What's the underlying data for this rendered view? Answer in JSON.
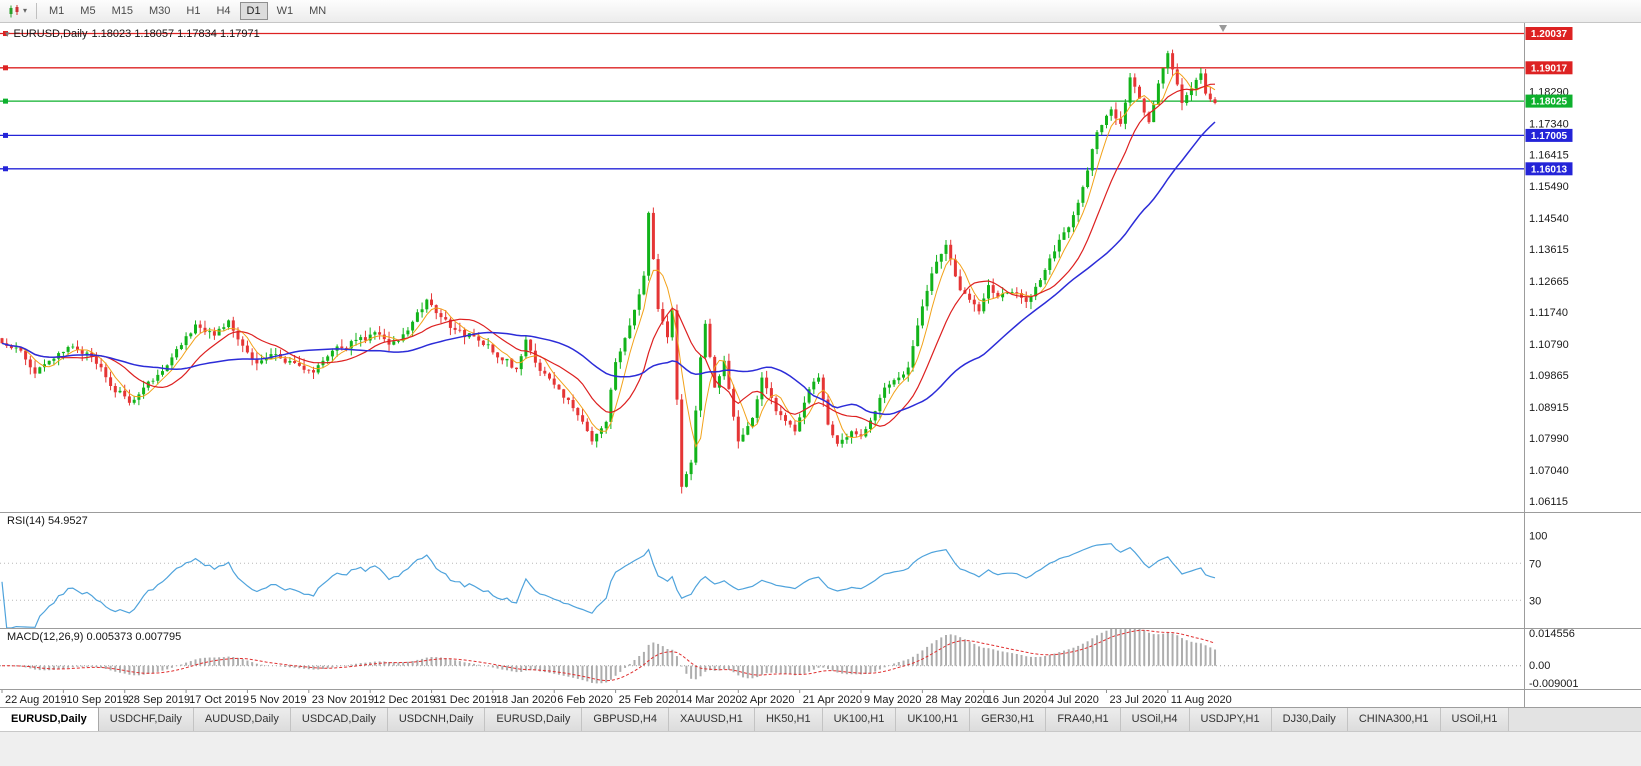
{
  "toolbar": {
    "timeframes": [
      "M1",
      "M5",
      "M15",
      "M30",
      "H1",
      "H4",
      "D1",
      "W1",
      "MN"
    ],
    "active_timeframe": "D1"
  },
  "chart": {
    "title": "EURUSD,Daily",
    "ohlc_text": "1.18023 1.18057 1.17834 1.17971",
    "price_axis_ticks": [
      "1.18290",
      "1.17340",
      "1.16415",
      "1.15490",
      "1.14540",
      "1.13615",
      "1.12665",
      "1.11740",
      "1.10790",
      "1.09865",
      "1.08915",
      "1.07990",
      "1.07040",
      "1.06115"
    ]
  },
  "chart_data": {
    "type": "candlestick",
    "symbol": "EURUSD",
    "period": "Daily",
    "num_candles": 258,
    "price_range": [
      1.058,
      1.2035
    ],
    "up_color": "#12b31a",
    "down_color": "#e53535",
    "anchors": [
      [
        0,
        1.1082
      ],
      [
        4,
        1.106
      ],
      [
        7,
        1.0992
      ],
      [
        10,
        1.103
      ],
      [
        14,
        1.1071
      ],
      [
        19,
        1.1042
      ],
      [
        23,
        1.0955
      ],
      [
        27,
        1.0905
      ],
      [
        29,
        1.093
      ],
      [
        33,
        1.0988
      ],
      [
        36,
        1.104
      ],
      [
        41,
        1.1138
      ],
      [
        45,
        1.1105
      ],
      [
        48,
        1.115
      ],
      [
        51,
        1.1075
      ],
      [
        54,
        1.1022
      ],
      [
        58,
        1.105
      ],
      [
        63,
        1.1015
      ],
      [
        66,
        1.0995
      ],
      [
        70,
        1.106
      ],
      [
        75,
        1.1092
      ],
      [
        79,
        1.1115
      ],
      [
        82,
        1.1078
      ],
      [
        86,
        1.112
      ],
      [
        90,
        1.1212
      ],
      [
        93,
        1.116
      ],
      [
        96,
        1.1122
      ],
      [
        101,
        1.109
      ],
      [
        105,
        1.104
      ],
      [
        109,
        1.1005
      ],
      [
        111,
        1.1093
      ],
      [
        114,
        1.1
      ],
      [
        118,
        1.0945
      ],
      [
        122,
        1.0868
      ],
      [
        125,
        1.079
      ],
      [
        128,
        1.0848
      ],
      [
        130,
        1.1026
      ],
      [
        133,
        1.1135
      ],
      [
        136,
        1.1283
      ],
      [
        137,
        1.147
      ],
      [
        139,
        1.1184
      ],
      [
        141,
        1.11
      ],
      [
        142,
        1.118
      ],
      [
        144,
        1.0655
      ],
      [
        146,
        1.0727
      ],
      [
        148,
        1.104
      ],
      [
        149,
        1.114
      ],
      [
        151,
        1.095
      ],
      [
        153,
        1.103
      ],
      [
        156,
        1.079
      ],
      [
        159,
        1.086
      ],
      [
        161,
        1.098
      ],
      [
        164,
        1.088
      ],
      [
        168,
        1.082
      ],
      [
        171,
        1.0945
      ],
      [
        173,
        1.098
      ],
      [
        175,
        1.084
      ],
      [
        177,
        1.0783
      ],
      [
        180,
        1.082
      ],
      [
        182,
        1.0805
      ],
      [
        185,
        1.088
      ],
      [
        187,
        1.095
      ],
      [
        190,
        1.098
      ],
      [
        192,
        1.101
      ],
      [
        194,
        1.1135
      ],
      [
        197,
        1.129
      ],
      [
        200,
        1.1375
      ],
      [
        203,
        1.124
      ],
      [
        207,
        1.1177
      ],
      [
        209,
        1.1255
      ],
      [
        211,
        1.1219
      ],
      [
        214,
        1.1234
      ],
      [
        217,
        1.1205
      ],
      [
        219,
        1.125
      ],
      [
        221,
        1.13
      ],
      [
        224,
        1.139
      ],
      [
        226,
        1.1427
      ],
      [
        228,
        1.15
      ],
      [
        230,
        1.1596
      ],
      [
        232,
        1.171
      ],
      [
        235,
        1.1778
      ],
      [
        237,
        1.1735
      ],
      [
        239,
        1.1873
      ],
      [
        241,
        1.181
      ],
      [
        243,
        1.174
      ],
      [
        245,
        1.1855
      ],
      [
        247,
        1.1945
      ],
      [
        249,
        1.1852
      ],
      [
        250,
        1.1797
      ],
      [
        252,
        1.184
      ],
      [
        254,
        1.1885
      ],
      [
        255,
        1.1825
      ],
      [
        256,
        1.1808
      ],
      [
        257,
        1.17971
      ]
    ],
    "moving_averages": [
      {
        "name": "fast",
        "period": 5,
        "color": "#f2a21a"
      },
      {
        "name": "medium",
        "period": 13,
        "color": "#dd2020"
      },
      {
        "name": "slow",
        "period": 34,
        "color": "#2c2cd8"
      }
    ],
    "horizontal_lines": [
      {
        "price": 1.20037,
        "label": "1.20037",
        "color": "#dd2222",
        "kind": "resistance"
      },
      {
        "price": 1.19017,
        "label": "1.19017",
        "color": "#dd2222",
        "kind": "resistance"
      },
      {
        "price": 1.18025,
        "label": "1.18025",
        "color": "#0db02d",
        "kind": "pivot"
      },
      {
        "price": 1.17005,
        "label": "1.17005",
        "color": "#2424d8",
        "kind": "support"
      },
      {
        "price": 1.16013,
        "label": "1.16013",
        "color": "#2424d8",
        "kind": "support"
      }
    ],
    "rsi": {
      "label": "RSI(14) 54.9527",
      "period": 14,
      "current_value": 54.9527,
      "levels": [
        100,
        70,
        30
      ],
      "color": "#4fa3dc"
    },
    "macd": {
      "label": "MACD(12,26,9) 0.005373 0.007795",
      "fast": 12,
      "slow": 26,
      "signal": 9,
      "values_text": [
        "0.005373",
        "0.007795"
      ],
      "axis_labels": [
        "0.014556",
        "0.00",
        "-0.009001"
      ],
      "histogram_color": "#adadad",
      "signal_color": "#e03030"
    },
    "date_ticks": [
      "22 Aug 2019",
      "10 Sep 2019",
      "28 Sep 2019",
      "17 Oct 2019",
      "5 Nov 2019",
      "23 Nov 2019",
      "12 Dec 2019",
      "31 Dec 2019",
      "18 Jan 2020",
      "6 Feb 2020",
      "25 Feb 2020",
      "14 Mar 2020",
      "2 Apr 2020",
      "21 Apr 2020",
      "9 May 2020",
      "28 May 2020",
      "16 Jun 2020",
      "4 Jul 2020",
      "23 Jul 2020",
      "11 Aug 2020"
    ],
    "tick_interval": 13
  },
  "tabs": {
    "active_index": 0,
    "items": [
      "EURUSD,Daily",
      "USDCHF,Daily",
      "AUDUSD,Daily",
      "USDCAD,Daily",
      "USDCNH,Daily",
      "EURUSD,Daily",
      "GBPUSD,H4",
      "XAUUSD,H1",
      "HK50,H1",
      "UK100,H1",
      "UK100,H1",
      "GER30,H1",
      "FRA40,H1",
      "USOil,H4",
      "USDJPY,H1",
      "DJ30,Daily",
      "CHINA300,H1",
      "USOil,H1"
    ]
  }
}
